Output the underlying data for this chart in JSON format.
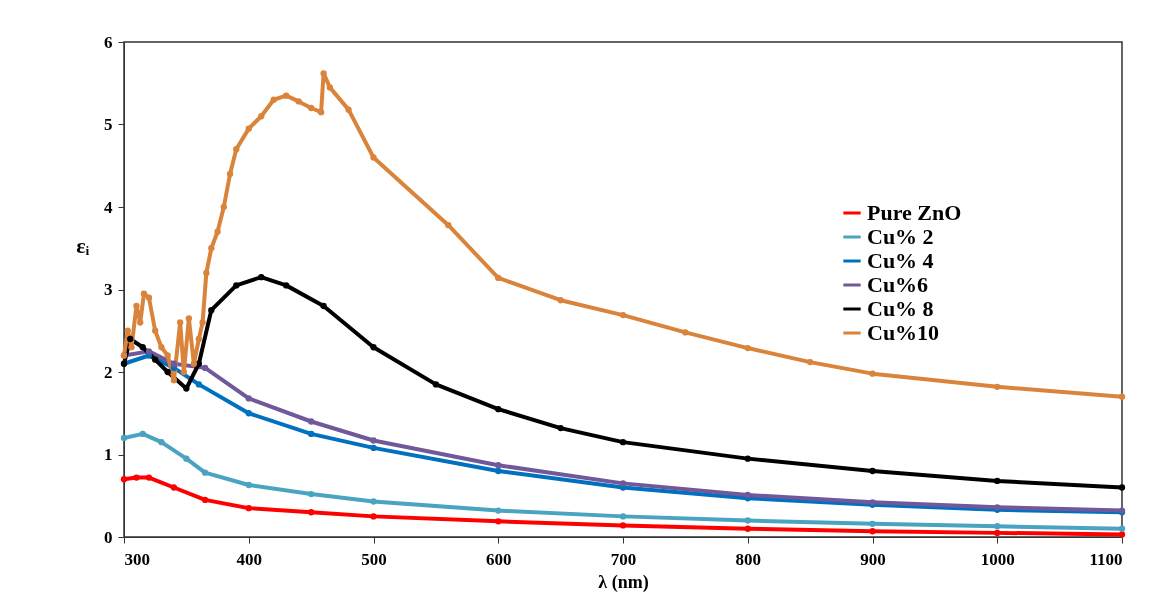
{
  "chart_data": {
    "type": "line",
    "xlabel": "λ (nm)",
    "ylabel": "εᵢ",
    "xlim": [
      300,
      1100
    ],
    "ylim": [
      0,
      6
    ],
    "xticks": [
      300,
      400,
      500,
      600,
      700,
      800,
      900,
      1000,
      1100
    ],
    "yticks": [
      0,
      1,
      2,
      3,
      4,
      5,
      6
    ],
    "grid": false,
    "legend": "top right",
    "marker": "circle",
    "line_style": "solid",
    "series": [
      {
        "name": "Pure ZnO",
        "color": "#ff0000",
        "x": [
          300,
          310,
          320,
          340,
          365,
          400,
          450,
          500,
          600,
          700,
          800,
          900,
          1000,
          1100
        ],
        "values": [
          0.7,
          0.72,
          0.72,
          0.6,
          0.45,
          0.35,
          0.3,
          0.25,
          0.19,
          0.14,
          0.1,
          0.07,
          0.05,
          0.03
        ]
      },
      {
        "name": "Cu% 2",
        "color": "#4aa3c0",
        "x": [
          300,
          315,
          330,
          350,
          365,
          400,
          450,
          500,
          600,
          700,
          800,
          900,
          1000,
          1100
        ],
        "values": [
          1.2,
          1.25,
          1.15,
          0.95,
          0.78,
          0.63,
          0.52,
          0.43,
          0.32,
          0.25,
          0.2,
          0.16,
          0.13,
          0.1
        ]
      },
      {
        "name": "Cu% 4",
        "color": "#0070c0",
        "x": [
          300,
          320,
          340,
          360,
          400,
          450,
          500,
          600,
          700,
          800,
          900,
          1000,
          1100
        ],
        "values": [
          2.1,
          2.2,
          2.05,
          1.85,
          1.5,
          1.25,
          1.08,
          0.8,
          0.6,
          0.47,
          0.39,
          0.33,
          0.3
        ]
      },
      {
        "name": "Cu%6",
        "color": "#70589a",
        "x": [
          300,
          320,
          340,
          365,
          400,
          450,
          500,
          600,
          700,
          800,
          900,
          1000,
          1100
        ],
        "values": [
          2.2,
          2.25,
          2.1,
          2.05,
          1.68,
          1.4,
          1.17,
          0.87,
          0.65,
          0.51,
          0.42,
          0.36,
          0.32
        ]
      },
      {
        "name": "Cu% 8",
        "color": "#000000",
        "x": [
          300,
          305,
          315,
          325,
          335,
          350,
          360,
          370,
          390,
          410,
          430,
          460,
          500,
          550,
          600,
          650,
          700,
          800,
          900,
          1000,
          1100
        ],
        "values": [
          2.1,
          2.4,
          2.3,
          2.15,
          2.0,
          1.8,
          2.1,
          2.75,
          3.05,
          3.15,
          3.05,
          2.8,
          2.3,
          1.85,
          1.55,
          1.32,
          1.15,
          0.95,
          0.8,
          0.68,
          0.6
        ]
      },
      {
        "name": "Cu%10",
        "color": "#d9843a",
        "x": [
          300,
          303,
          306,
          310,
          313,
          316,
          320,
          325,
          330,
          335,
          340,
          345,
          348,
          352,
          356,
          360,
          363,
          366,
          370,
          375,
          380,
          385,
          390,
          400,
          410,
          420,
          430,
          440,
          450,
          458,
          460,
          465,
          480,
          500,
          560,
          600,
          650,
          700,
          750,
          800,
          850,
          900,
          1000,
          1100
        ],
        "values": [
          2.2,
          2.5,
          2.3,
          2.8,
          2.6,
          2.95,
          2.9,
          2.5,
          2.3,
          2.2,
          1.9,
          2.6,
          2.0,
          2.65,
          2.1,
          2.4,
          2.6,
          3.2,
          3.5,
          3.7,
          4.0,
          4.4,
          4.7,
          4.95,
          5.1,
          5.3,
          5.35,
          5.28,
          5.2,
          5.15,
          5.62,
          5.45,
          5.18,
          4.6,
          3.78,
          3.14,
          2.87,
          2.69,
          2.48,
          2.29,
          2.12,
          1.98,
          1.82,
          1.7
        ]
      }
    ]
  }
}
